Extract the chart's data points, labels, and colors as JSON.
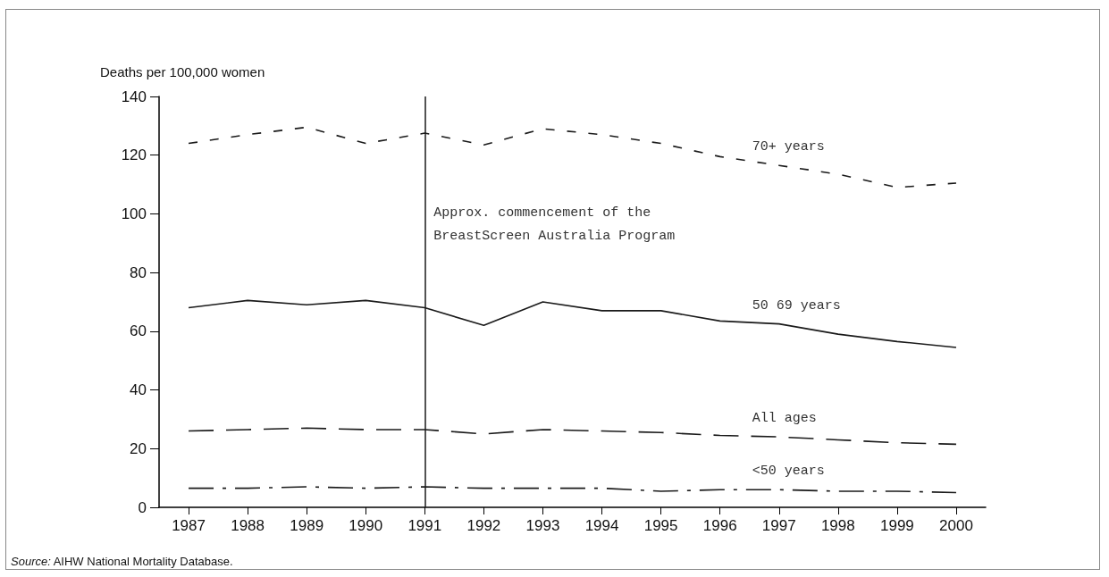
{
  "chart_data": {
    "type": "line",
    "ylabel": "Deaths per 100,000 women",
    "categories": [
      "1987",
      "1988",
      "1989",
      "1990",
      "1991",
      "1992",
      "1993",
      "1994",
      "1995",
      "1996",
      "1997",
      "1998",
      "1999",
      "2000"
    ],
    "series": [
      {
        "name": "70+ years",
        "color": "#1a1a1a",
        "line_style": "dotted",
        "values": [
          124,
          127,
          129.5,
          124,
          127.5,
          123.5,
          129,
          127,
          124,
          119.5,
          116.5,
          113.5,
          109,
          110.5
        ]
      },
      {
        "name": "50 69 years",
        "color": "#1a1a1a",
        "line_style": "solid",
        "values": [
          68,
          70.5,
          69,
          70.5,
          68,
          62,
          70,
          67,
          67,
          63.5,
          62.5,
          59,
          56.5,
          54.5
        ]
      },
      {
        "name": "All ages",
        "color": "#1a1a1a",
        "line_style": "dashed",
        "values": [
          26,
          26.5,
          27,
          26.5,
          26.5,
          25,
          26.5,
          26,
          25.5,
          24.5,
          24,
          23,
          22,
          21.5
        ]
      },
      {
        "name": "<50 years",
        "color": "#1a1a1a",
        "line_style": "dashdot",
        "values": [
          6.5,
          6.5,
          7,
          6.5,
          7,
          6.5,
          6.5,
          6.5,
          5.5,
          6,
          6,
          5.5,
          5.5,
          5
        ]
      }
    ],
    "ylim": [
      0,
      140
    ],
    "yticks": [
      0,
      20,
      40,
      60,
      80,
      100,
      120,
      140
    ],
    "ref_lines": [
      {
        "axis": "x",
        "value": "1991",
        "label": "Approx. commencement of the BreastScreen Australia Program",
        "color": "#1a1a1a"
      }
    ],
    "annotations": [
      "Source: AIHW National Mortality Database."
    ],
    "marker": "none",
    "grid": false,
    "legend": false
  }
}
